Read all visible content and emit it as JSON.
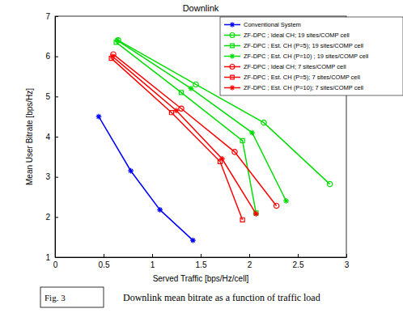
{
  "chart_data": {
    "type": "line",
    "title": "Downlink",
    "xlabel": "Served Traffic [bps/Hz/cell]",
    "ylabel": "Mean User Bitrate [bps/Hz]",
    "annotations": [
      "Fig. 3",
      "Downlink mean bitrate as a function of traffic load"
    ],
    "xlim": [
      0,
      3
    ],
    "xticks": [
      0,
      0.5,
      1,
      1.5,
      2,
      2.5,
      3
    ],
    "ylim": [
      1,
      7
    ],
    "yticks": [
      1,
      2,
      3,
      4,
      5,
      6,
      7
    ],
    "grid": false,
    "legend": "upper right",
    "series": [
      {
        "name": "Conventional System",
        "color": "#0000ff",
        "marker": "star",
        "line_style": "solid",
        "x": [
          0.45,
          0.78,
          1.08,
          1.42
        ],
        "values": [
          4.5,
          3.15,
          2.18,
          1.42
        ]
      },
      {
        "name": "ZF-DPC ; Ideal CH; 19 sites/COMP cell",
        "color": "#00dd00",
        "marker": "circle",
        "line_style": "solid",
        "x": [
          0.65,
          1.45,
          2.15,
          2.83
        ],
        "values": [
          6.4,
          5.3,
          4.35,
          2.82
        ]
      },
      {
        "name": "ZF-DPC ; Est. CH (P=5); 19 sites/COMP cell",
        "color": "#00dd00",
        "marker": "square",
        "line_style": "solid",
        "x": [
          0.63,
          1.3,
          1.93,
          2.07
        ],
        "values": [
          6.35,
          5.1,
          3.9,
          2.1
        ]
      },
      {
        "name": "ZF-DPC ; Est. CH (P=10) ; 19 sites/COMP cell",
        "color": "#00dd00",
        "marker": "star",
        "line_style": "solid",
        "x": [
          0.64,
          1.4,
          2.03,
          2.38
        ],
        "values": [
          6.4,
          5.2,
          4.1,
          2.4
        ]
      },
      {
        "name": "ZF-DPC ; Ideal CH; 7 sites/COMP cell",
        "color": "#ff0000",
        "marker": "circle",
        "line_style": "solid",
        "x": [
          0.6,
          1.3,
          1.85,
          2.28
        ],
        "values": [
          6.05,
          4.7,
          3.62,
          2.28
        ]
      },
      {
        "name": "ZF-DPC ; Est. CH (P=5); 7 sites/COMP cell",
        "color": "#ff0000",
        "marker": "square",
        "line_style": "solid",
        "x": [
          0.58,
          1.2,
          1.7,
          1.93
        ],
        "values": [
          5.95,
          4.6,
          3.38,
          1.93
        ]
      },
      {
        "name": "ZF-DPC ; Est. CH (P=10); 7 sites/COMP cell",
        "color": "#ff0000",
        "marker": "star",
        "line_style": "solid",
        "x": [
          0.59,
          1.25,
          1.72,
          2.07
        ],
        "values": [
          6.0,
          4.65,
          3.45,
          2.08
        ]
      }
    ]
  }
}
